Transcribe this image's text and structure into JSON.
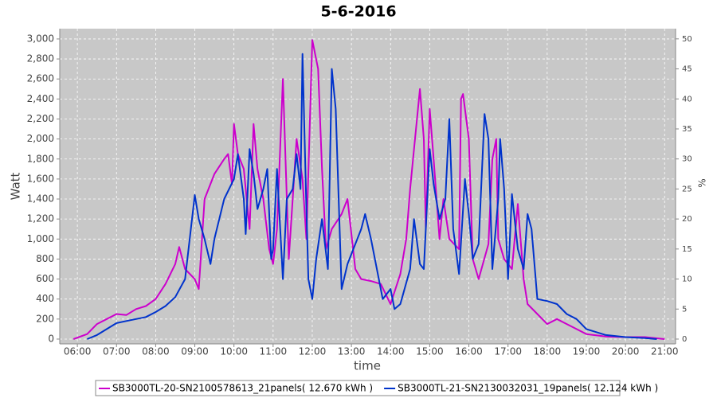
{
  "chart_data": {
    "type": "line",
    "title": "5-6-2016",
    "xlabel": "time",
    "ylabel": "Watt",
    "y2label": "%",
    "xlim": [
      5.55,
      21.28
    ],
    "xticks": [
      {
        "value": 6,
        "label": "06:00"
      },
      {
        "value": 7,
        "label": "07:00"
      },
      {
        "value": 8,
        "label": "08:00"
      },
      {
        "value": 9,
        "label": "09:00"
      },
      {
        "value": 10,
        "label": "10:00"
      },
      {
        "value": 11,
        "label": "11:00"
      },
      {
        "value": 12,
        "label": "12:00"
      },
      {
        "value": 13,
        "label": "13:00"
      },
      {
        "value": 14,
        "label": "14:00"
      },
      {
        "value": 15,
        "label": "15:00"
      },
      {
        "value": 16,
        "label": "16:00"
      },
      {
        "value": 17,
        "label": "17:00"
      },
      {
        "value": 18,
        "label": "18:00"
      },
      {
        "value": 19,
        "label": "19:00"
      },
      {
        "value": 20,
        "label": "20:00"
      },
      {
        "value": 21,
        "label": "21:00"
      }
    ],
    "ylim": [
      -48,
      3103
    ],
    "yticks": [
      0,
      200,
      400,
      600,
      800,
      {
        "value": 1000,
        "label": "1,000"
      },
      {
        "value": 1200,
        "label": "1,200"
      },
      {
        "value": 1400,
        "label": "1,400"
      },
      {
        "value": 1600,
        "label": "1,600"
      },
      {
        "value": 1800,
        "label": "1,800"
      },
      {
        "value": 2000,
        "label": "2,000"
      },
      {
        "value": 2200,
        "label": "2,200"
      },
      {
        "value": 2400,
        "label": "2,400"
      },
      {
        "value": 2600,
        "label": "2,600"
      },
      {
        "value": 2800,
        "label": "2,800"
      },
      {
        "value": 3000,
        "label": "3,000"
      }
    ],
    "y2lim": [
      -0.8,
      51.7
    ],
    "y2ticks": [
      0,
      5,
      10,
      15,
      20,
      25,
      30,
      35,
      40,
      45,
      50
    ],
    "grid": true,
    "series": [
      {
        "name": "SB3000TL-20-SN2100578613_21panels( 12.670 kWh )",
        "color": "#cc00cc",
        "x": [
          5.9,
          6.25,
          6.5,
          6.75,
          7.0,
          7.25,
          7.5,
          7.75,
          8.0,
          8.25,
          8.5,
          8.6,
          8.75,
          9.0,
          9.1,
          9.25,
          9.5,
          9.75,
          9.85,
          9.95,
          10.0,
          10.1,
          10.25,
          10.4,
          10.5,
          10.6,
          10.75,
          10.9,
          11.0,
          11.1,
          11.25,
          11.4,
          11.5,
          11.6,
          11.75,
          11.85,
          12.0,
          12.15,
          12.25,
          12.35,
          12.5,
          12.75,
          12.9,
          13.1,
          13.25,
          13.5,
          13.75,
          14.0,
          14.25,
          14.4,
          14.5,
          14.6,
          14.75,
          14.85,
          14.9,
          15.0,
          15.1,
          15.25,
          15.35,
          15.5,
          15.75,
          15.8,
          15.85,
          16.0,
          16.1,
          16.25,
          16.5,
          16.6,
          16.7,
          16.75,
          16.9,
          17.1,
          17.25,
          17.4,
          17.5,
          17.75,
          18.0,
          18.25,
          18.5,
          18.75,
          19.0,
          19.5,
          20.0,
          20.5,
          20.75,
          21.0
        ],
        "values": [
          0,
          50,
          150,
          200,
          250,
          240,
          300,
          330,
          400,
          550,
          750,
          920,
          700,
          600,
          500,
          1400,
          1650,
          1800,
          1850,
          1550,
          2150,
          1850,
          1700,
          1100,
          2150,
          1700,
          1400,
          900,
          750,
          1100,
          2600,
          800,
          1400,
          2000,
          1600,
          1000,
          2990,
          2700,
          1700,
          900,
          1100,
          1250,
          1400,
          700,
          600,
          580,
          550,
          350,
          650,
          1000,
          1500,
          1900,
          2500,
          2000,
          1100,
          2300,
          1800,
          1000,
          1400,
          1000,
          900,
          2400,
          2450,
          2000,
          800,
          600,
          950,
          1800,
          2000,
          1000,
          800,
          700,
          1350,
          600,
          350,
          250,
          150,
          200,
          150,
          100,
          50,
          25,
          20,
          20,
          10,
          0
        ]
      },
      {
        "name": "SB3000TL-21-SN2130032031_19panels( 12.124 kWh )",
        "color": "#0033cc",
        "x": [
          6.25,
          6.5,
          6.75,
          7.0,
          7.25,
          7.5,
          7.75,
          8.0,
          8.25,
          8.5,
          8.75,
          9.0,
          9.1,
          9.25,
          9.4,
          9.5,
          9.75,
          10.0,
          10.1,
          10.25,
          10.3,
          10.4,
          10.5,
          10.6,
          10.75,
          10.85,
          10.95,
          11.0,
          11.1,
          11.25,
          11.35,
          11.5,
          11.6,
          11.7,
          11.75,
          11.85,
          11.9,
          12.0,
          12.1,
          12.25,
          12.4,
          12.5,
          12.6,
          12.75,
          12.9,
          13.0,
          13.25,
          13.35,
          13.5,
          13.6,
          13.8,
          14.0,
          14.1,
          14.25,
          14.5,
          14.6,
          14.75,
          14.85,
          15.0,
          15.1,
          15.25,
          15.4,
          15.5,
          15.6,
          15.75,
          15.9,
          16.0,
          16.1,
          16.25,
          16.4,
          16.5,
          16.6,
          16.75,
          16.8,
          16.9,
          17.0,
          17.1,
          17.25,
          17.4,
          17.5,
          17.6,
          17.75,
          18.0,
          18.25,
          18.5,
          18.75,
          19.0,
          19.5,
          20.0,
          20.5,
          20.8
        ],
        "values": [
          0,
          40,
          100,
          160,
          180,
          200,
          220,
          270,
          330,
          420,
          600,
          1440,
          1200,
          1000,
          750,
          1000,
          1400,
          1600,
          1850,
          1400,
          1050,
          1900,
          1650,
          1300,
          1500,
          1700,
          800,
          900,
          1700,
          600,
          1400,
          1500,
          1850,
          1500,
          2850,
          1300,
          600,
          400,
          800,
          1200,
          700,
          2700,
          2300,
          500,
          750,
          850,
          1100,
          1250,
          1000,
          800,
          400,
          500,
          300,
          350,
          700,
          1200,
          750,
          700,
          1900,
          1550,
          1200,
          1400,
          2200,
          1100,
          650,
          1600,
          1250,
          800,
          950,
          2250,
          2000,
          700,
          1400,
          2000,
          1500,
          600,
          1450,
          900,
          700,
          1250,
          1100,
          400,
          380,
          350,
          250,
          200,
          100,
          40,
          20,
          10,
          0
        ]
      }
    ]
  }
}
